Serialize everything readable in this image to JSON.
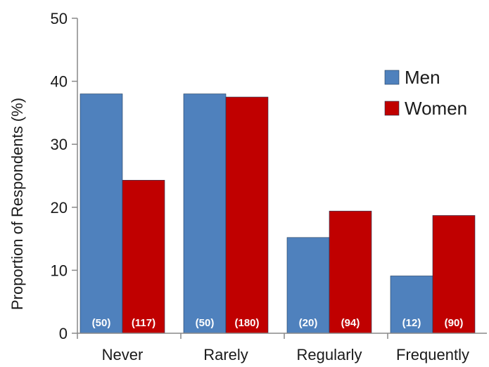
{
  "chart_data": {
    "type": "bar",
    "title": "",
    "xlabel": "",
    "ylabel": "Proportion of Respondents (%)",
    "ylim": [
      0,
      50
    ],
    "yticks": [
      0,
      10,
      20,
      30,
      40,
      50
    ],
    "grid": false,
    "legend_position": "top-right",
    "categories": [
      "Never",
      "Rarely",
      "Regularly",
      "Frequently"
    ],
    "series": [
      {
        "name": "Men",
        "color": "#4f81bd",
        "values": [
          38,
          38,
          15.2,
          9.1
        ],
        "labels": [
          "(50)",
          "(50)",
          "(20)",
          "(12)"
        ]
      },
      {
        "name": "Women",
        "color": "#c00000",
        "values": [
          24.3,
          37.5,
          19.4,
          18.7
        ],
        "labels": [
          "(117)",
          "(180)",
          "(94)",
          "(90)"
        ]
      }
    ]
  }
}
